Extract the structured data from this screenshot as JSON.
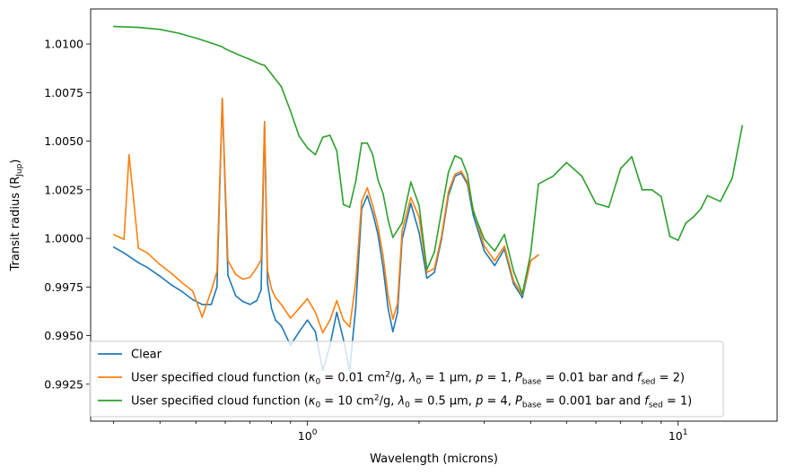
{
  "chart_data": {
    "type": "line",
    "xlabel": "Wavelength (microns)",
    "ylabel": "Transit radius (Rjup)",
    "ylabel_main": "Transit radius (R",
    "ylabel_sub": "Jup",
    "ylabel_close": ")",
    "x_scale": "log",
    "xlim": [
      0.26,
      18.5
    ],
    "ylim": [
      0.9906,
      1.0118
    ],
    "x_ticks": [
      {
        "value": 1,
        "base": "10",
        "exp": "0"
      },
      {
        "value": 10,
        "base": "10",
        "exp": "1"
      }
    ],
    "y_ticks": [
      {
        "value": 0.9925,
        "label": "0.9925"
      },
      {
        "value": 0.995,
        "label": "0.9950"
      },
      {
        "value": 0.9975,
        "label": "0.9975"
      },
      {
        "value": 1.0,
        "label": "1.0000"
      },
      {
        "value": 1.0025,
        "label": "1.0025"
      },
      {
        "value": 1.005,
        "label": "1.0050"
      },
      {
        "value": 1.0075,
        "label": "1.0075"
      },
      {
        "value": 1.01,
        "label": "1.0100"
      }
    ],
    "grid": false,
    "legend_position": "lower-left",
    "series": [
      {
        "name": "Clear",
        "color": "#1f77b4",
        "x": [
          0.3,
          0.32,
          0.35,
          0.37,
          0.4,
          0.43,
          0.46,
          0.49,
          0.52,
          0.55,
          0.57,
          0.589,
          0.61,
          0.64,
          0.67,
          0.7,
          0.73,
          0.75,
          0.766,
          0.78,
          0.8,
          0.82,
          0.85,
          0.9,
          0.95,
          1.0,
          1.05,
          1.1,
          1.15,
          1.2,
          1.25,
          1.3,
          1.35,
          1.4,
          1.45,
          1.5,
          1.55,
          1.6,
          1.65,
          1.7,
          1.75,
          1.8,
          1.9,
          2.0,
          2.1,
          2.2,
          2.3,
          2.4,
          2.5,
          2.6,
          2.7,
          2.8,
          3.0,
          3.2,
          3.4,
          3.6,
          3.8,
          4.0,
          4.2
        ],
        "values": [
          0.99955,
          0.99925,
          0.99875,
          0.9985,
          0.99805,
          0.9976,
          0.99725,
          0.99685,
          0.9966,
          0.9966,
          0.9975,
          1.0072,
          0.9981,
          0.99705,
          0.99675,
          0.9966,
          0.9968,
          0.99735,
          1.006,
          0.9977,
          0.9964,
          0.9958,
          0.9955,
          0.9945,
          0.9952,
          0.9958,
          0.9952,
          0.9932,
          0.9945,
          0.9962,
          0.9948,
          0.9932,
          0.9965,
          1.0015,
          1.0022,
          1.0013,
          1.0002,
          0.9985,
          0.9964,
          0.9952,
          0.9962,
          0.99995,
          1.0018,
          1.0003,
          0.99795,
          0.99825,
          0.99995,
          1.0022,
          1.0032,
          1.00335,
          1.0028,
          1.0012,
          0.99935,
          0.9986,
          0.99945,
          0.99765,
          0.99695,
          0.99885,
          0.99915
        ]
      },
      {
        "name": "User specified cloud function (κ0 = 0.01 cm²/g, λ0 = 1 μm, p = 1, Pbase = 0.01 bar and fsed = 2)",
        "color": "#ff7f0e",
        "x": [
          0.3,
          0.32,
          0.33,
          0.35,
          0.37,
          0.4,
          0.43,
          0.46,
          0.49,
          0.52,
          0.55,
          0.57,
          0.589,
          0.61,
          0.64,
          0.67,
          0.7,
          0.73,
          0.75,
          0.766,
          0.78,
          0.8,
          0.82,
          0.85,
          0.9,
          0.95,
          1.0,
          1.05,
          1.1,
          1.15,
          1.2,
          1.25,
          1.3,
          1.35,
          1.4,
          1.45,
          1.5,
          1.55,
          1.6,
          1.65,
          1.7,
          1.75,
          1.8,
          1.9,
          2.0,
          2.1,
          2.2,
          2.3,
          2.4,
          2.5,
          2.6,
          2.7,
          2.8,
          3.0,
          3.2,
          3.4,
          3.6,
          3.8,
          4.0,
          4.2
        ],
        "values": [
          1.0002,
          0.99995,
          1.0043,
          0.9995,
          0.99925,
          0.99865,
          0.9982,
          0.9977,
          0.9973,
          0.99595,
          0.9973,
          0.9983,
          1.0072,
          0.99885,
          0.99815,
          0.9979,
          0.998,
          0.9985,
          0.9989,
          1.006,
          0.99835,
          0.9974,
          0.99695,
          0.9966,
          0.9959,
          0.9964,
          0.9969,
          0.9962,
          0.99515,
          0.9958,
          0.9968,
          0.9958,
          0.99545,
          0.9978,
          1.0019,
          1.0026,
          1.0017,
          1.0006,
          0.9991,
          0.99705,
          0.99585,
          0.99665,
          1.0004,
          1.0021,
          1.0011,
          0.99825,
          0.99845,
          1.0001,
          1.0024,
          1.0033,
          1.00345,
          1.0029,
          1.0015,
          0.9996,
          0.99885,
          0.9996,
          0.9978,
          0.9971,
          0.99885,
          0.99915
        ]
      },
      {
        "name": "User specified cloud function (κ0 = 10 cm²/g, λ0 = 0.5 μm, p = 4, Pbase = 0.001 bar and fsed = 1)",
        "color": "#2ca02c",
        "x": [
          0.3,
          0.35,
          0.4,
          0.45,
          0.5,
          0.55,
          0.589,
          0.6,
          0.65,
          0.7,
          0.75,
          0.766,
          0.8,
          0.85,
          0.9,
          0.95,
          1.0,
          1.05,
          1.1,
          1.15,
          1.2,
          1.25,
          1.3,
          1.35,
          1.4,
          1.45,
          1.5,
          1.55,
          1.6,
          1.65,
          1.7,
          1.8,
          1.9,
          2.0,
          2.1,
          2.2,
          2.3,
          2.4,
          2.5,
          2.6,
          2.7,
          2.8,
          3.0,
          3.2,
          3.4,
          3.6,
          3.8,
          4.0,
          4.2,
          4.6,
          5.0,
          5.5,
          6.0,
          6.5,
          7.0,
          7.5,
          8.0,
          8.5,
          9.0,
          9.5,
          10.0,
          10.5,
          11.0,
          11.5,
          12.0,
          13.0,
          14.0,
          14.9
        ],
        "values": [
          1.0109,
          1.01085,
          1.01075,
          1.01055,
          1.0103,
          1.01005,
          1.00985,
          1.00975,
          1.00945,
          1.0092,
          1.00895,
          1.0089,
          1.00845,
          1.0078,
          1.00655,
          1.00525,
          1.00465,
          1.0043,
          1.0052,
          1.0053,
          1.0045,
          1.00175,
          1.0016,
          1.00295,
          1.0049,
          1.0049,
          1.0043,
          1.003,
          1.0023,
          1.00095,
          1.00005,
          1.0008,
          1.0029,
          1.0017,
          0.9984,
          0.9993,
          1.0014,
          1.0034,
          1.00425,
          1.0041,
          1.0033,
          1.0014,
          0.99995,
          0.99935,
          1.0002,
          0.9983,
          0.99715,
          0.9992,
          1.0028,
          1.0032,
          1.0039,
          1.0032,
          1.0018,
          1.0016,
          1.0036,
          1.0042,
          1.0025,
          1.0025,
          1.00215,
          1.0001,
          0.9999,
          1.0008,
          1.0011,
          1.0015,
          1.0022,
          1.0019,
          1.0031,
          1.0058
        ]
      }
    ],
    "legend": {
      "entries": [
        {
          "color": "#1f77b4",
          "parts": [
            [
              "t",
              "Clear"
            ]
          ]
        },
        {
          "color": "#ff7f0e",
          "parts": [
            [
              "t",
              "User specified cloud function ("
            ],
            [
              "i",
              "κ"
            ],
            [
              "sub",
              "0"
            ],
            [
              "t",
              " = 0.01 cm"
            ],
            [
              "sup",
              "2"
            ],
            [
              "t",
              "/g, "
            ],
            [
              "i",
              "λ"
            ],
            [
              "sub",
              "0"
            ],
            [
              "t",
              " = 1 μm, "
            ],
            [
              "i",
              "p"
            ],
            [
              "t",
              " = 1, "
            ],
            [
              "i",
              "P"
            ],
            [
              "sub",
              "base"
            ],
            [
              "t",
              " = 0.01 bar and "
            ],
            [
              "i",
              "f"
            ],
            [
              "sub",
              "sed"
            ],
            [
              "t",
              " = 2)"
            ]
          ]
        },
        {
          "color": "#2ca02c",
          "parts": [
            [
              "t",
              "User specified cloud function ("
            ],
            [
              "i",
              "κ"
            ],
            [
              "sub",
              "0"
            ],
            [
              "t",
              " = 10 cm"
            ],
            [
              "sup",
              "2"
            ],
            [
              "t",
              "/g, "
            ],
            [
              "i",
              "λ"
            ],
            [
              "sub",
              "0"
            ],
            [
              "t",
              " = 0.5 μm, "
            ],
            [
              "i",
              "p"
            ],
            [
              "t",
              " = 4, "
            ],
            [
              "i",
              "P"
            ],
            [
              "sub",
              "base"
            ],
            [
              "t",
              " = 0.001 bar and "
            ],
            [
              "i",
              "f"
            ],
            [
              "sub",
              "sed"
            ],
            [
              "t",
              " = 1)"
            ]
          ]
        }
      ]
    }
  }
}
